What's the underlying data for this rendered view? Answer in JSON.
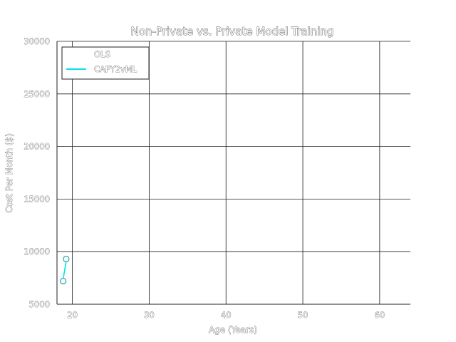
{
  "chart_data": {
    "type": "line",
    "title": "Non-Private vs. Private Model Training",
    "xlabel": "Age (Years)",
    "ylabel": "Cost Per Month ($)",
    "xlim": [
      18,
      64
    ],
    "ylim": [
      5000,
      30000
    ],
    "xticks": [
      20,
      30,
      40,
      50,
      60
    ],
    "yticks": [
      5000,
      10000,
      15000,
      20000,
      25000,
      30000
    ],
    "grid": true,
    "legend_position": "top-left",
    "series": [
      {
        "name": "OLS",
        "color": "#ffffff",
        "x": [
          18.8,
          19.2
        ],
        "y": [
          7200,
          9300
        ],
        "marker": "circle"
      },
      {
        "name": "CAPY2vML",
        "color": "#00e5e5",
        "x": [
          18.8,
          19.2
        ],
        "y": [
          7400,
          9100
        ],
        "marker": "none"
      }
    ]
  }
}
